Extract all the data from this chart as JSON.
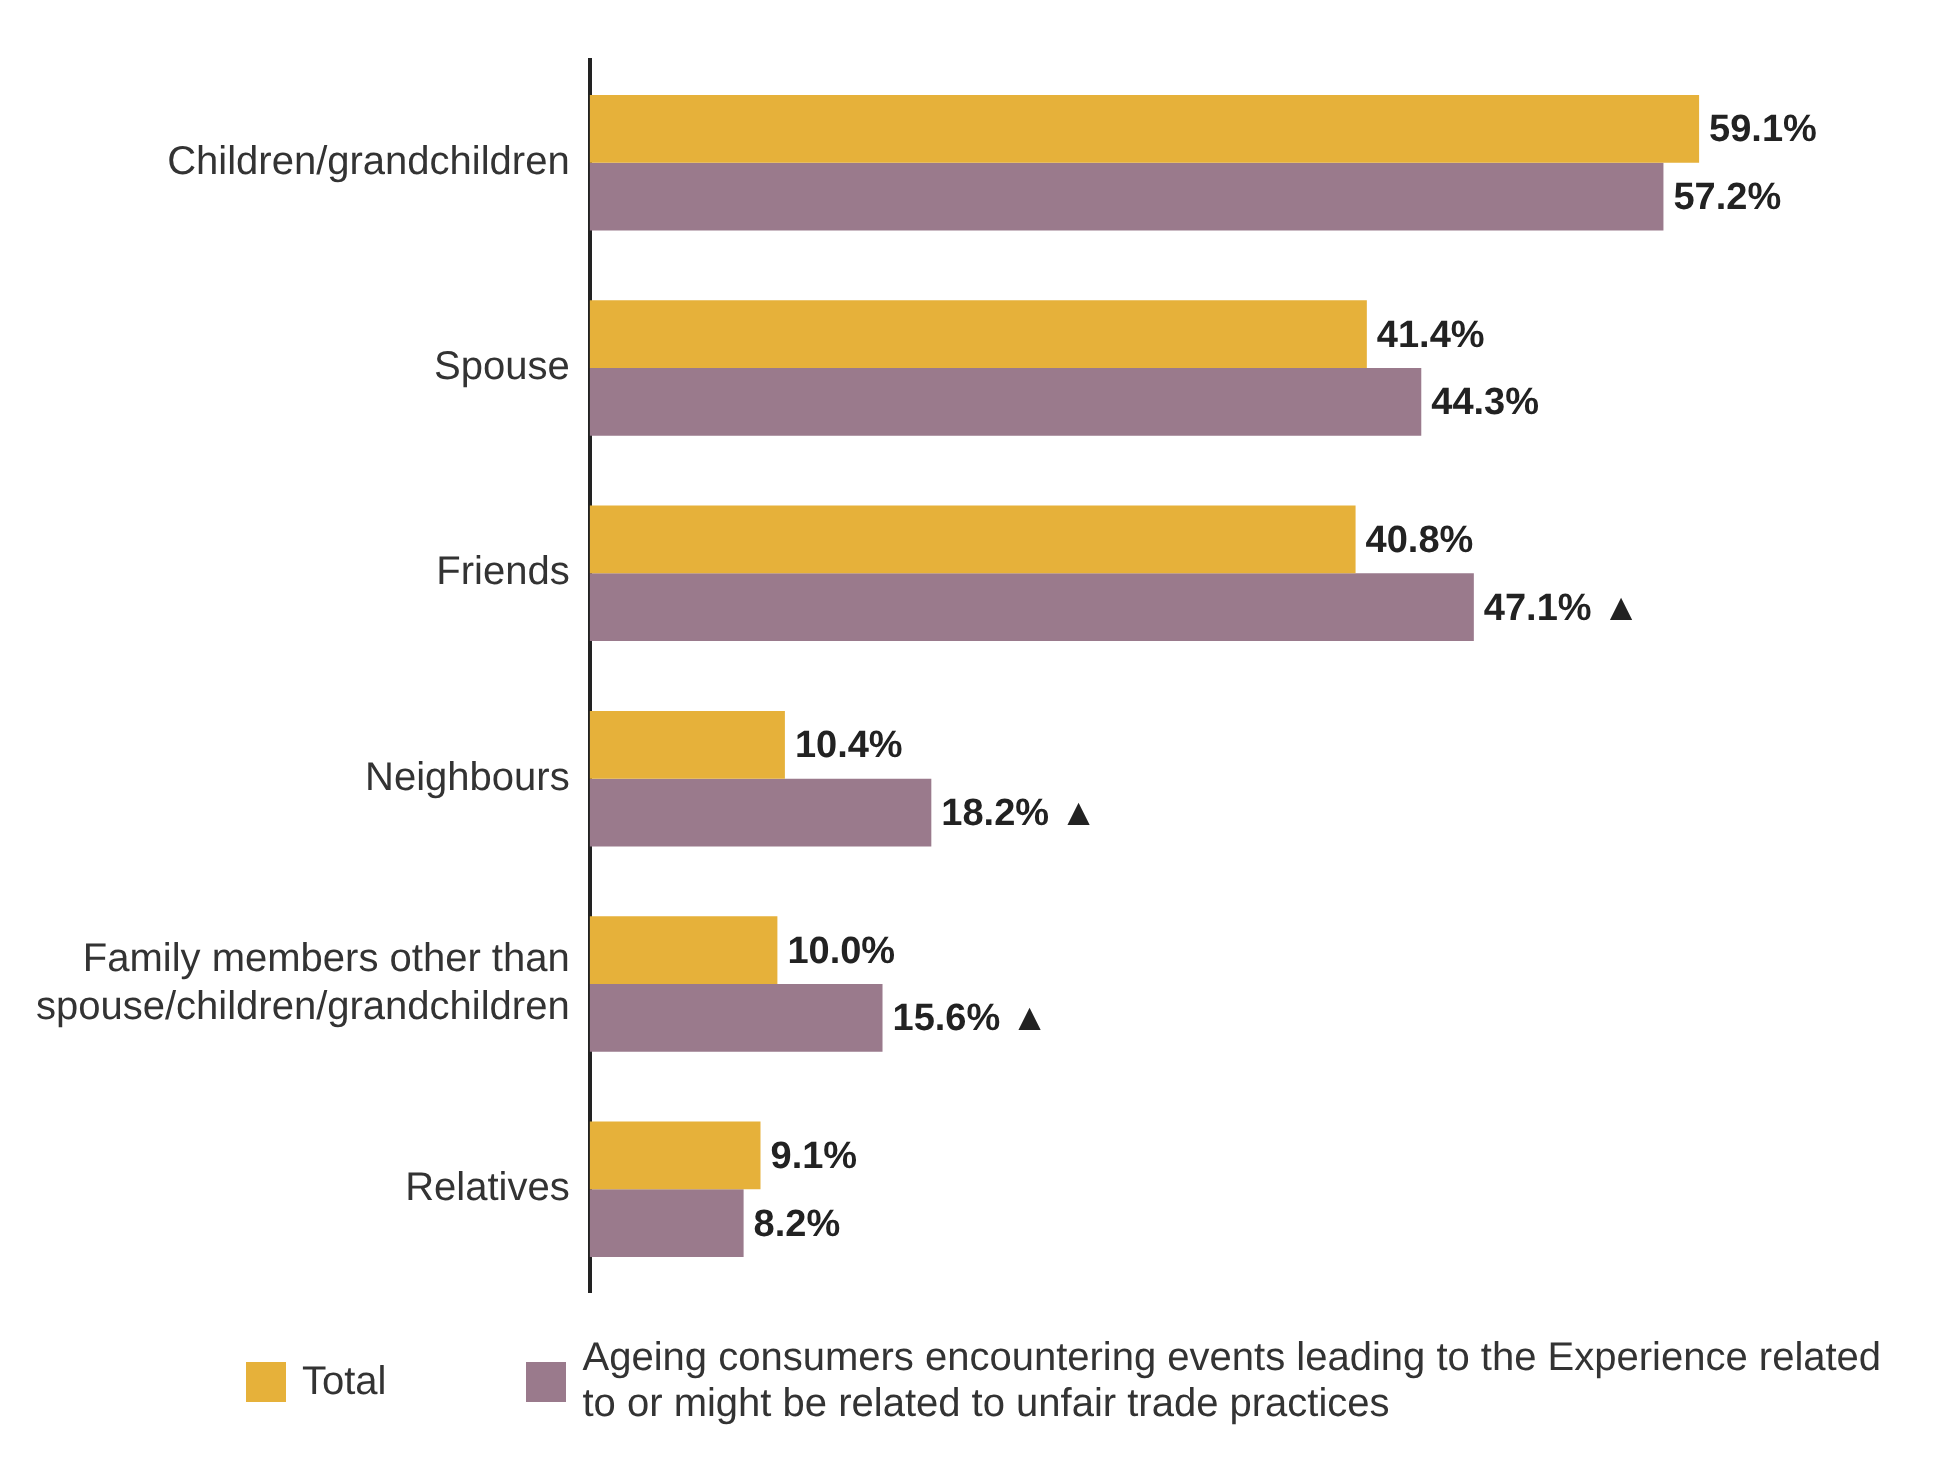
{
  "chart_data": {
    "type": "bar",
    "orientation": "horizontal",
    "categories": [
      "Children/grandchildren",
      "Spouse",
      "Friends",
      "Neighbours",
      "Family members other than spouse/children/grandchildren",
      "Relatives"
    ],
    "series": [
      {
        "name": "Total",
        "color": "#e6b13a",
        "values": [
          59.1,
          41.4,
          40.8,
          10.4,
          10.0,
          9.1
        ],
        "value_labels": [
          "59.1%",
          "41.4%",
          "40.8%",
          "10.4%",
          "10.0%",
          "9.1%"
        ]
      },
      {
        "name": "Ageing consumers encountering events leading to the Experience related to or might be related to unfair trade practices",
        "color": "#9a7a8c",
        "values": [
          57.2,
          44.3,
          47.1,
          18.2,
          15.6,
          8.2
        ],
        "value_labels": [
          "57.2%",
          "44.3%",
          "47.1% ▲",
          "18.2% ▲",
          "15.6% ▲",
          "8.2%"
        ]
      }
    ],
    "legend": "bottom"
  }
}
